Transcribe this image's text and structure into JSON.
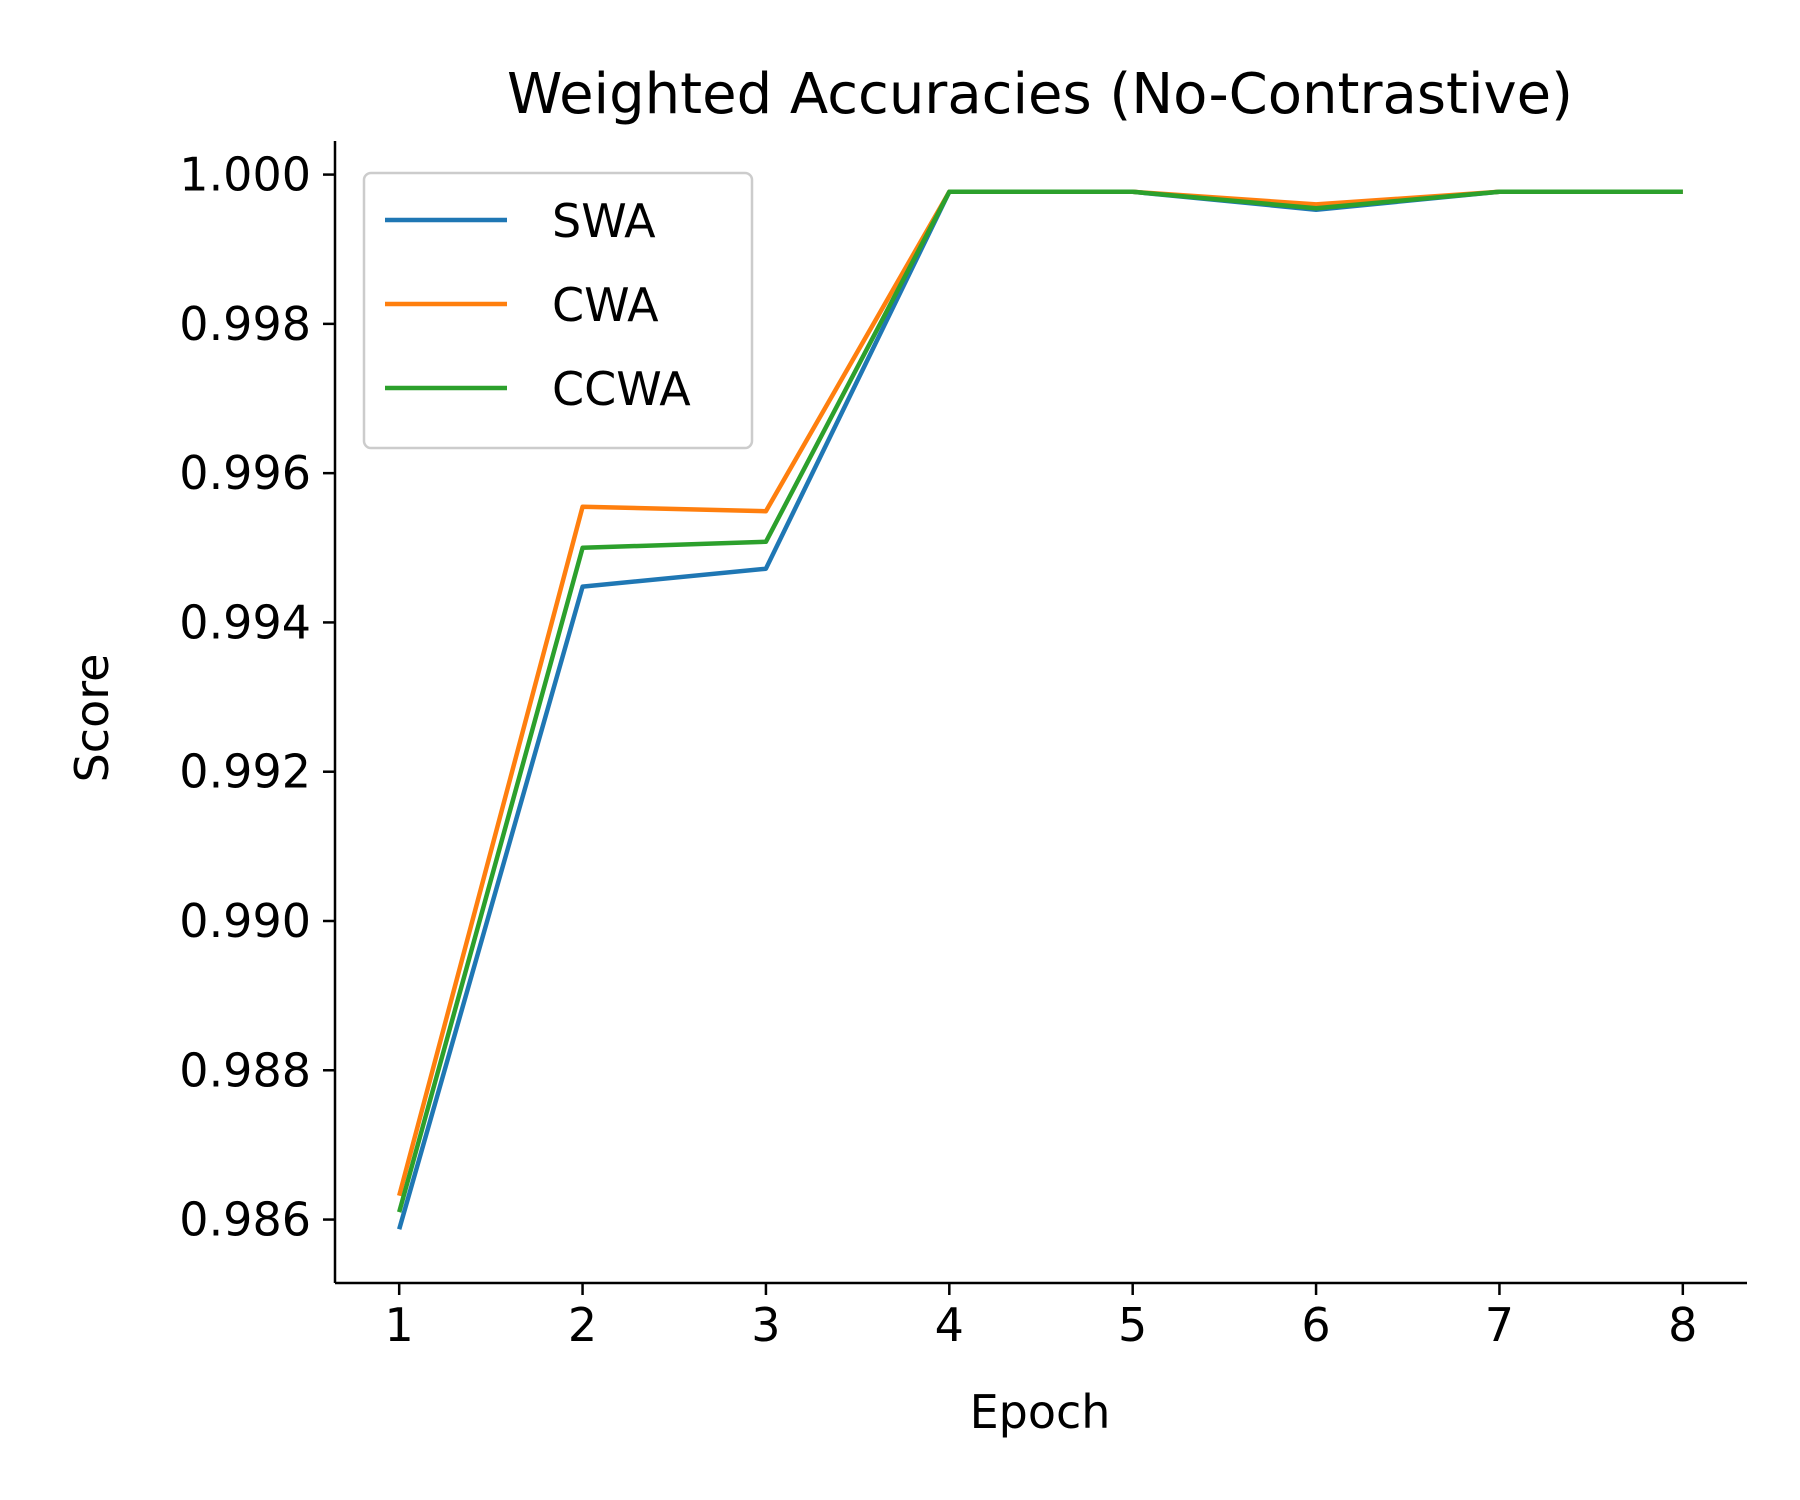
{
  "chart_data": {
    "type": "line",
    "title": "Weighted Accuracies (No-Contrastive)",
    "xlabel": "Epoch",
    "ylabel": "Score",
    "x": [
      1,
      2,
      3,
      4,
      5,
      6,
      7,
      8
    ],
    "xticks": [
      "1",
      "2",
      "3",
      "4",
      "5",
      "6",
      "7",
      "8"
    ],
    "yticks": [
      "0.986",
      "0.988",
      "0.990",
      "0.992",
      "0.994",
      "0.996",
      "0.998",
      "1.000"
    ],
    "ytick_values": [
      0.986,
      0.988,
      0.99,
      0.992,
      0.994,
      0.996,
      0.998,
      1.0
    ],
    "xlim": [
      0.65,
      8.35
    ],
    "ylim": [
      0.98515,
      1.00045
    ],
    "grid": false,
    "legend": "upper-left",
    "series": [
      {
        "name": "SWA",
        "color": "#1f77b4",
        "values": [
          0.98587,
          0.99448,
          0.99472,
          0.99977,
          0.99977,
          0.99953,
          0.99977,
          0.99977
        ]
      },
      {
        "name": "CWA",
        "color": "#ff7f0e",
        "values": [
          0.98632,
          0.99555,
          0.99549,
          0.99977,
          0.99977,
          0.9996,
          0.99977,
          0.99977
        ]
      },
      {
        "name": "CCWA",
        "color": "#2ca02c",
        "values": [
          0.9861,
          0.995,
          0.99508,
          0.99977,
          0.99977,
          0.99955,
          0.99977,
          0.99977
        ]
      }
    ]
  }
}
